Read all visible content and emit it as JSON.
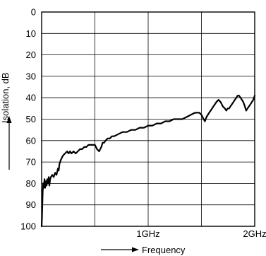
{
  "chart_data": {
    "type": "line",
    "xlabel": "Frequency",
    "ylabel": "Isolation, dB",
    "xlim": [
      0,
      2
    ],
    "ylim": [
      0,
      100
    ],
    "y_inverted": true,
    "y_ticks": [
      0,
      10,
      20,
      30,
      40,
      50,
      60,
      70,
      80,
      90,
      100
    ],
    "x_ticks": [
      {
        "value": 1,
        "label": "1GHz"
      },
      {
        "value": 2,
        "label": "2GHz"
      }
    ],
    "grid": true,
    "grid_x_divisions": 4,
    "series": [
      {
        "color": "#000000",
        "x": [
          0.0,
          0.003,
          0.01,
          0.015,
          0.02,
          0.027,
          0.033,
          0.04,
          0.047,
          0.053,
          0.06,
          0.067,
          0.073,
          0.08,
          0.087,
          0.1,
          0.113,
          0.127,
          0.14,
          0.153,
          0.16,
          0.167,
          0.18,
          0.2,
          0.22,
          0.24,
          0.253,
          0.267,
          0.28,
          0.3,
          0.32,
          0.34,
          0.36,
          0.38,
          0.4,
          0.42,
          0.44,
          0.46,
          0.48,
          0.5,
          0.52,
          0.54,
          0.56,
          0.573,
          0.587,
          0.6,
          0.62,
          0.64,
          0.66,
          0.68,
          0.72,
          0.76,
          0.8,
          0.84,
          0.88,
          0.92,
          0.96,
          1.0,
          1.04,
          1.08,
          1.12,
          1.16,
          1.2,
          1.24,
          1.28,
          1.32,
          1.36,
          1.4,
          1.44,
          1.48,
          1.5,
          1.52,
          1.533,
          1.547,
          1.56,
          1.573,
          1.587,
          1.6,
          1.613,
          1.627,
          1.64,
          1.66,
          1.68,
          1.7,
          1.72,
          1.733,
          1.747,
          1.76,
          1.773,
          1.787,
          1.8,
          1.813,
          1.827,
          1.84,
          1.853,
          1.867,
          1.88,
          1.893,
          1.907,
          1.92,
          1.933,
          1.947,
          1.96,
          1.973,
          1.987,
          2.0
        ],
        "values": [
          100,
          96,
          84,
          80,
          82,
          78,
          82,
          79,
          81,
          78,
          80,
          77,
          81,
          78,
          77,
          76,
          77,
          75,
          76,
          73,
          74,
          71,
          69,
          67,
          66,
          65,
          66,
          65,
          66,
          65,
          66,
          65,
          64,
          64,
          63,
          63,
          62,
          62,
          62,
          62,
          64,
          65,
          63,
          61,
          61,
          60,
          59,
          59,
          58,
          58,
          57,
          56,
          56,
          55,
          55,
          54,
          54,
          53,
          53,
          52,
          52,
          51,
          51,
          50,
          50,
          50,
          49,
          48,
          47,
          47,
          48,
          50,
          51,
          49,
          48,
          47,
          46,
          45,
          44,
          43,
          42,
          41,
          42,
          44,
          45,
          46,
          45,
          45,
          44,
          43,
          42,
          41,
          40,
          39,
          39,
          40,
          41,
          42,
          44,
          46,
          45,
          44,
          43,
          42,
          41,
          39
        ]
      }
    ]
  }
}
